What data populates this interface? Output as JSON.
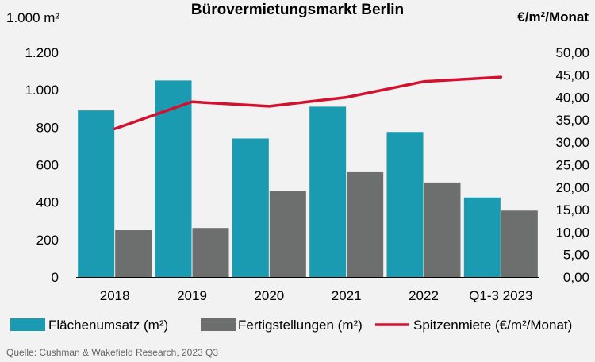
{
  "chart_data": {
    "type": "bar",
    "title": "Bürovermietungsmarkt Berlin",
    "categories": [
      "2018",
      "2019",
      "2020",
      "2021",
      "2022",
      "Q1-3 2023"
    ],
    "series": [
      {
        "name": "Flächenumsatz (m²)",
        "kind": "bar",
        "axis": "left",
        "color": "#1a9bb2",
        "values": [
          890,
          1050,
          740,
          910,
          775,
          425
        ]
      },
      {
        "name": "Fertigstellungen (m²)",
        "kind": "bar",
        "axis": "left",
        "color": "#6d6e6e",
        "values": [
          250,
          262,
          462,
          560,
          505,
          355
        ]
      },
      {
        "name": "Spitzenmiete (€/m²/Monat)",
        "kind": "line",
        "axis": "right",
        "color": "#d5102e",
        "values": [
          33.0,
          39.0,
          38.0,
          40.0,
          43.5,
          44.5
        ]
      }
    ],
    "y_left": {
      "label": "1.000 m²",
      "ylim": [
        0,
        1200
      ],
      "ticks": [
        0,
        200,
        400,
        600,
        800,
        1000,
        1200
      ],
      "tick_labels": [
        "0",
        "200",
        "400",
        "600",
        "800",
        "1.000",
        "1.200"
      ]
    },
    "y_right": {
      "label": "€/m²/Monat",
      "ylim": [
        0,
        50
      ],
      "ticks": [
        0,
        5,
        10,
        15,
        20,
        25,
        30,
        35,
        40,
        45,
        50
      ],
      "tick_labels": [
        "0,00",
        "5,00",
        "10,00",
        "15,00",
        "20,00",
        "25,00",
        "30,00",
        "35,00",
        "40,00",
        "45,00",
        "50,00"
      ]
    },
    "grid": false,
    "legend_position": "bottom"
  },
  "source": "Quelle: Cushman & Wakefield Research, 2023 Q3",
  "colors": {
    "background": "#f2f2f2",
    "axis": "#000000"
  }
}
